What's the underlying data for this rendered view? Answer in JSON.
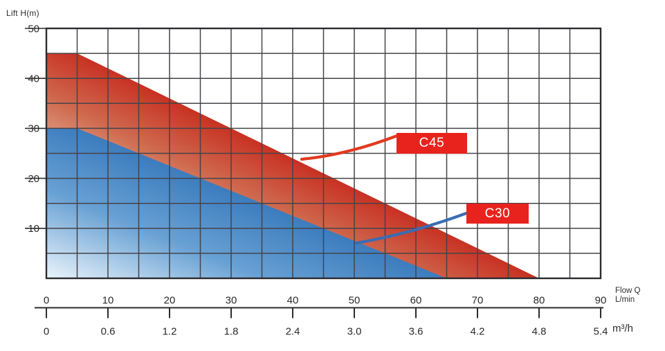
{
  "labels": {
    "y_axis": "Lift H(m)",
    "x_axis_line1": "Flow Q",
    "x_axis_line2": "L/min",
    "x_axis_unit": "m³/h"
  },
  "chart_data": {
    "type": "area",
    "ylabel": "Lift H(m)",
    "xlabel_primary": "Flow Q L/min",
    "xlabel_secondary": "m³/h",
    "xlim": [
      0,
      90
    ],
    "ylim": [
      0,
      50
    ],
    "grid": {
      "on": true,
      "x_step": 5,
      "y_step": 5
    },
    "x_ticks_lmin": [
      "0",
      "10",
      "20",
      "30",
      "40",
      "50",
      "60",
      "70",
      "80",
      "90"
    ],
    "x_ticks_m3h": [
      "0",
      "0.6",
      "1.2",
      "1.8",
      "2.4",
      "3.0",
      "3.6",
      "4.2",
      "4.8",
      "5.4"
    ],
    "y_ticks": [
      "50",
      "40",
      "30",
      "20",
      "10"
    ],
    "legend_position": "inline-callouts",
    "series": [
      {
        "name": "C45",
        "points_q_h": [
          [
            0,
            45
          ],
          [
            5,
            45
          ],
          [
            80,
            0
          ]
        ],
        "edge_color": "#c83122",
        "mid_color": "#cf6b50",
        "fade_color": "#e6c3ad",
        "callout_color": "#e03a1f",
        "badge_bg": "#e8231e",
        "badge_text_color": "#ffffff"
      },
      {
        "name": "C30",
        "points_q_h": [
          [
            0,
            30
          ],
          [
            5,
            30
          ],
          [
            65,
            0
          ]
        ],
        "edge_color": "#3c7cbe",
        "mid_color": "#67a0d3",
        "fade_color": "#eaf4fb",
        "callout_color": "#3a6cb2",
        "badge_bg": "#e8231e",
        "badge_text_color": "#ffffff"
      }
    ]
  }
}
